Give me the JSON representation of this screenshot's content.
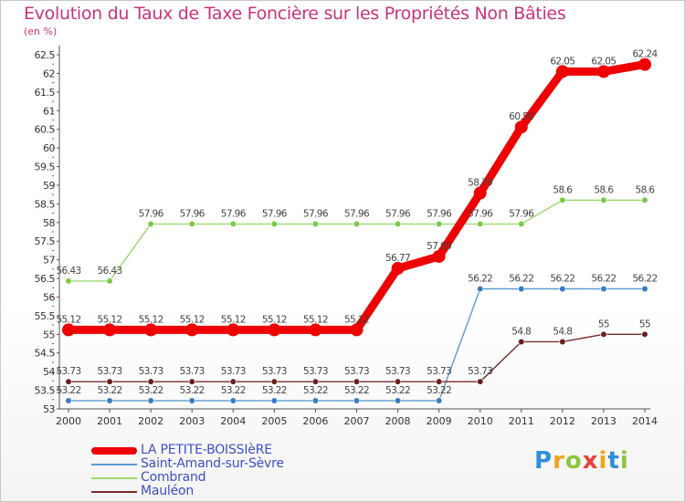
{
  "chart_data": {
    "type": "line",
    "title": "Evolution du Taux de Taxe Foncière sur les Propriétés Non Bâties",
    "ylabel": "(en %)",
    "xlabel": "",
    "categories": [
      "2000",
      "2001",
      "2002",
      "2003",
      "2004",
      "2005",
      "2006",
      "2007",
      "2008",
      "2009",
      "2010",
      "2011",
      "2012",
      "2013",
      "2014"
    ],
    "ylim": [
      53,
      62.5
    ],
    "yticks": [
      53,
      53.5,
      54,
      54.5,
      55,
      55.5,
      56,
      56.5,
      57,
      57.5,
      58,
      58.5,
      59,
      59.5,
      60,
      60.5,
      61,
      61.5,
      62,
      62.5
    ],
    "ytick_labels": [
      "53",
      "53.5",
      "54",
      "54.5",
      "55",
      "55.5",
      "56",
      "56.5",
      "57",
      "57.5",
      "58",
      "58.5",
      "59",
      "59.5",
      "60",
      "60.5",
      "61",
      "61.5",
      "62",
      "62.5"
    ],
    "grid": false,
    "legend_position": "bottom-left",
    "series": [
      {
        "name": "LA PETITE-BOISSIèRE",
        "color": "#ee0000",
        "highlight": true,
        "values": [
          55.12,
          55.12,
          55.12,
          55.12,
          55.12,
          55.12,
          55.12,
          55.12,
          56.77,
          57.09,
          58.79,
          60.56,
          62.05,
          62.05,
          62.24
        ],
        "labels": [
          "55.12",
          "55.12",
          "55.12",
          "55.12",
          "55.12",
          "55.12",
          "55.12",
          "55.12",
          "56.77",
          "57.09",
          "58.79",
          "60.56",
          "62.05",
          "62.05",
          "62.24"
        ]
      },
      {
        "name": "Saint-Amand-sur-Sèvre",
        "color": "#5b9bd5",
        "point_color": "#3a7cc4",
        "highlight": false,
        "values": [
          53.22,
          53.22,
          53.22,
          53.22,
          53.22,
          53.22,
          53.22,
          53.22,
          53.22,
          53.22,
          56.22,
          56.22,
          56.22,
          56.22,
          56.22
        ],
        "labels": [
          "53.22",
          "53.22",
          "53.22",
          "53.22",
          "53.22",
          "53.22",
          "53.22",
          "53.22",
          "53.22",
          "53.22",
          "56.22",
          "56.22",
          "56.22",
          "56.22",
          "56.22"
        ]
      },
      {
        "name": "Combrand",
        "color": "#9ad96c",
        "point_color": "#7cc94a",
        "highlight": false,
        "values": [
          56.43,
          56.43,
          57.96,
          57.96,
          57.96,
          57.96,
          57.96,
          57.96,
          57.96,
          57.96,
          57.96,
          57.96,
          58.6,
          58.6,
          58.6
        ],
        "labels": [
          "56.43",
          "56.43",
          "57.96",
          "57.96",
          "57.96",
          "57.96",
          "57.96",
          "57.96",
          "57.96",
          "57.96",
          "57.96",
          "57.96",
          "58.6",
          "58.6",
          "58.6"
        ]
      },
      {
        "name": "Mauléon",
        "color": "#7a2c2c",
        "point_color": "#6b1f1f",
        "highlight": false,
        "values": [
          53.73,
          53.73,
          53.73,
          53.73,
          53.73,
          53.73,
          53.73,
          53.73,
          53.73,
          53.73,
          53.73,
          54.8,
          54.8,
          55,
          55
        ],
        "labels": [
          "53.73",
          "53.73",
          "53.73",
          "53.73",
          "53.73",
          "53.73",
          "53.73",
          "53.73",
          "53.73",
          "53.73",
          "53.73",
          "54.8",
          "54.8",
          "55",
          "55"
        ]
      }
    ]
  },
  "brand": {
    "letters": [
      "P",
      "r",
      "o",
      "x",
      "i",
      "t",
      "i"
    ],
    "colors": [
      "#2f8fd8",
      "#f2a31b",
      "#8cc63f",
      "#e8413c",
      "#f2a31b",
      "#2f8fd8",
      "#8cc63f"
    ]
  }
}
